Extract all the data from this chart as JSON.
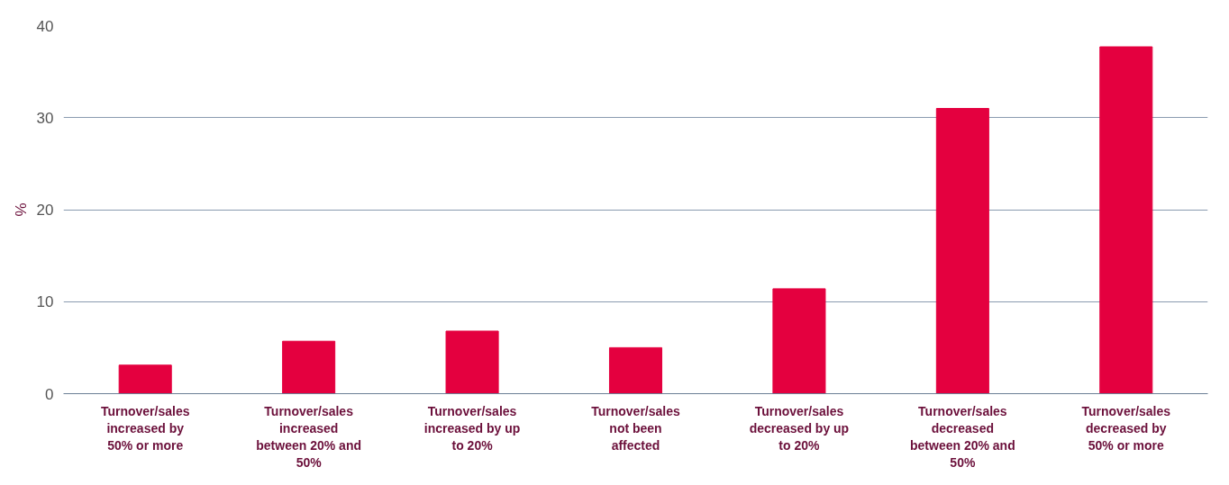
{
  "chart_data": {
    "type": "bar",
    "ylabel": "%",
    "categories": [
      "Turnover/sales increased by 50% or more",
      "Turnover/sales increased between 20% and 50%",
      "Turnover/sales increased by up to 20%",
      "Turnover/sales not been affected",
      "Turnover/sales decreased by up to 20%",
      "Turnover/sales decreased between 20% and 50%",
      "Turnover/sales decreased by 50% or more"
    ],
    "values": [
      3.1,
      5.7,
      6.8,
      5.0,
      11.4,
      31.0,
      37.7
    ],
    "color": "#e4003f",
    "ylim": [
      0,
      40
    ],
    "yticks": [
      0,
      10,
      20,
      30,
      40
    ],
    "grid": "y"
  }
}
